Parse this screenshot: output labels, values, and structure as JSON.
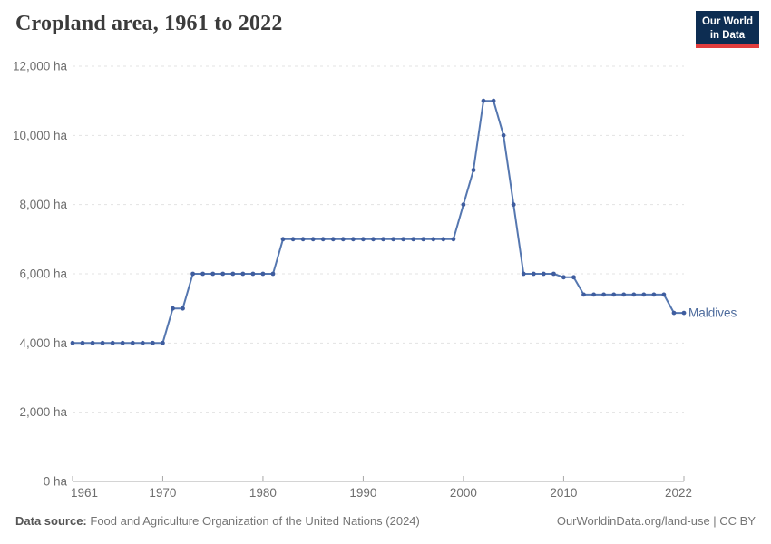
{
  "header": {
    "title": "Cropland area, 1961 to 2022"
  },
  "logo": {
    "line1": "Our World",
    "line2": "in Data"
  },
  "chart_data": {
    "type": "line",
    "title": "Cropland area, 1961 to 2022",
    "xlabel": "",
    "ylabel": "",
    "xlim": [
      1961,
      2022
    ],
    "ylim": [
      0,
      12000
    ],
    "xticks": [
      1961,
      1970,
      1980,
      1990,
      2000,
      2010,
      2022
    ],
    "yticks": [
      0,
      2000,
      4000,
      6000,
      8000,
      10000,
      12000
    ],
    "ytick_unit": "ha",
    "grid": "horizontal-dashed",
    "legend_position": "end-of-line-label",
    "series": [
      {
        "name": "Maldives",
        "color": "#4C6A9C",
        "x": [
          1961,
          1962,
          1963,
          1964,
          1965,
          1966,
          1967,
          1968,
          1969,
          1970,
          1971,
          1972,
          1973,
          1974,
          1975,
          1976,
          1977,
          1978,
          1979,
          1980,
          1981,
          1982,
          1983,
          1984,
          1985,
          1986,
          1987,
          1988,
          1989,
          1990,
          1991,
          1992,
          1993,
          1994,
          1995,
          1996,
          1997,
          1998,
          1999,
          2000,
          2001,
          2002,
          2003,
          2004,
          2005,
          2006,
          2007,
          2008,
          2009,
          2010,
          2011,
          2012,
          2013,
          2014,
          2015,
          2016,
          2017,
          2018,
          2019,
          2020,
          2021,
          2022
        ],
        "values": [
          4000,
          4000,
          4000,
          4000,
          4000,
          4000,
          4000,
          4000,
          4000,
          4000,
          5000,
          5000,
          6000,
          6000,
          6000,
          6000,
          6000,
          6000,
          6000,
          6000,
          6000,
          7000,
          7000,
          7000,
          7000,
          7000,
          7000,
          7000,
          7000,
          7000,
          7000,
          7000,
          7000,
          7000,
          7000,
          7000,
          7000,
          7000,
          7000,
          8000,
          9000,
          11000,
          11000,
          10000,
          8000,
          6000,
          6000,
          6000,
          6000,
          5900,
          5900,
          5400,
          5400,
          5400,
          5400,
          5400,
          5400,
          5400,
          5400,
          5400,
          4870,
          4870
        ]
      }
    ],
    "colors": {
      "grid": "#e3e3e3",
      "axis": "#a8a8a8",
      "tick_text": "#6e6e6e",
      "line": "#5577b0",
      "marker": "#3f5d9f",
      "entity_label": "#4C6A9C"
    }
  },
  "footer": {
    "source_label": "Data source:",
    "source": "Food and Agriculture Organization of the United Nations (2024)",
    "credit": "OurWorldinData.org/land-use | CC BY"
  }
}
